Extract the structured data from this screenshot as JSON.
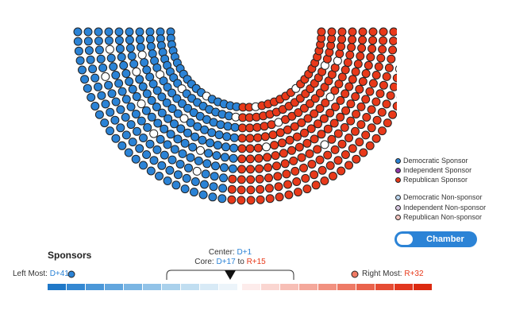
{
  "colors": {
    "democratic": "#2b83d6",
    "independent": "#8e3aa8",
    "republican": "#e8391a",
    "independent_nonsponsor": "#d9c9e2",
    "republican_nonsponsor": "#f5c6c0",
    "democratic_nonsponsor": "#bcd6ef",
    "nonsponsor": "#ffffff"
  },
  "chamber": {
    "rows": [
      {
        "radius_rank": 1,
        "seats": 38,
        "nonsponsor_positions": [
          0.33,
          0.55,
          0.72
        ]
      },
      {
        "radius_rank": 2,
        "seats": 40,
        "nonsponsor_positions": [
          0.22,
          0.45,
          0.86
        ]
      },
      {
        "radius_rank": 3,
        "seats": 42,
        "nonsponsor_positions": [
          0.15,
          0.62,
          0.9
        ]
      },
      {
        "radius_rank": 4,
        "seats": 44,
        "nonsponsor_positions": [
          0.08,
          0.3,
          0.78
        ]
      },
      {
        "radius_rank": 5,
        "seats": 46,
        "nonsponsor_positions": [
          0.12,
          0.55
        ]
      },
      {
        "radius_rank": 6,
        "seats": 48,
        "nonsponsor_positions": [
          0.2,
          0.38
        ]
      },
      {
        "radius_rank": 7,
        "seats": 50,
        "nonsponsor_positions": [
          0.05,
          0.26,
          0.7
        ]
      },
      {
        "radius_rank": 8,
        "seats": 52,
        "nonsponsor_positions": [
          0.1,
          0.4
        ]
      },
      {
        "radius_rank": 9,
        "seats": 54,
        "nonsponsor_positions": [
          0.92,
          0.96
        ]
      },
      {
        "radius_rank": 10,
        "seats": 56,
        "nonsponsor_positions": [
          0.94,
          0.98
        ]
      }
    ]
  },
  "legend": [
    {
      "label": "Democratic Sponsor",
      "icon": "democratic-sponsor-dot",
      "color": "#2b83d6"
    },
    {
      "label": "Independent Sponsor",
      "icon": "independent-sponsor-dot",
      "color": "#8e3aa8"
    },
    {
      "label": "Republican Sponsor",
      "icon": "republican-sponsor-dot",
      "color": "#e8391a"
    },
    {
      "label": "Democratic Non-sponsor",
      "icon": "democratic-nonsponsor-dot",
      "color": "#bcd6ef"
    },
    {
      "label": "Independent Non-sponsor",
      "icon": "independent-nonsponsor-dot",
      "color": "#d9c9e2"
    },
    {
      "label": "Republican Non-sponsor",
      "icon": "republican-nonsponsor-dot",
      "color": "#f5c6c0"
    }
  ],
  "toggle": {
    "label": "Chamber",
    "state": "on"
  },
  "sponsors": {
    "title": "Sponsors",
    "center_label": "Center:",
    "center_value": "D+1",
    "core_label": "Core:",
    "core_from": "D+17",
    "core_to_word": "to",
    "core_to": "R+15",
    "left_most_label": "Left Most:",
    "left_most_value": "D+41",
    "right_most_label": "Right Most:",
    "right_most_value": "R+32",
    "scale_blue": [
      "#1f78c8",
      "#3488d2",
      "#4b97d8",
      "#62a6de",
      "#7ab5e3",
      "#92c3e8",
      "#aad1ec",
      "#c1def1",
      "#d8eaf6",
      "#ecf4fa"
    ],
    "scale_red": [
      "#fdeceb",
      "#fad6d1",
      "#f7bfb6",
      "#f4a89b",
      "#f19180",
      "#ee7a66",
      "#ea634c",
      "#e64c34",
      "#e2371f",
      "#dc2a10"
    ],
    "scale_active_blue": 10,
    "scale_active_red": 10
  }
}
